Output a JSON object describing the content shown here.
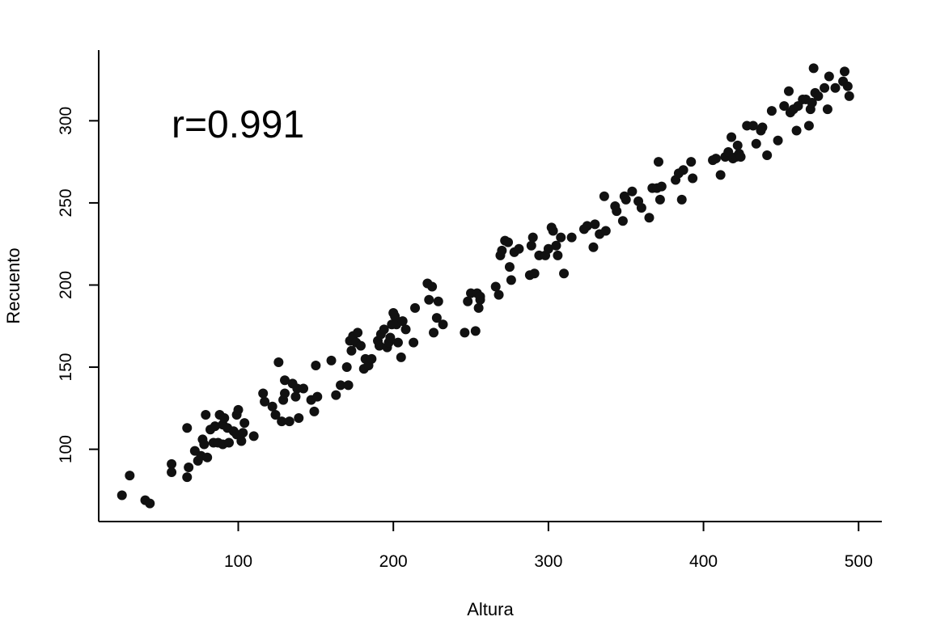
{
  "chart_data": {
    "type": "scatter",
    "title": "",
    "xlabel": "Altura",
    "ylabel": "Recuento",
    "xlim": [
      10,
      515
    ],
    "ylim": [
      56,
      343
    ],
    "x_ticks": [
      100,
      200,
      300,
      400,
      500
    ],
    "y_ticks": [
      100,
      150,
      200,
      250,
      300
    ],
    "annotation": "r=0.991",
    "grid": false,
    "points": [
      [
        25,
        72
      ],
      [
        30,
        84
      ],
      [
        40,
        69
      ],
      [
        43,
        67
      ],
      [
        57,
        91
      ],
      [
        57,
        86
      ],
      [
        67,
        83
      ],
      [
        68,
        89
      ],
      [
        67,
        113
      ],
      [
        72,
        99
      ],
      [
        74,
        93
      ],
      [
        76,
        96
      ],
      [
        77,
        106
      ],
      [
        78,
        103
      ],
      [
        79,
        121
      ],
      [
        80,
        95
      ],
      [
        82,
        112
      ],
      [
        84,
        104
      ],
      [
        85,
        114
      ],
      [
        87,
        104
      ],
      [
        88,
        121
      ],
      [
        90,
        103
      ],
      [
        90,
        115
      ],
      [
        91,
        119
      ],
      [
        93,
        113
      ],
      [
        94,
        104
      ],
      [
        97,
        111
      ],
      [
        99,
        109
      ],
      [
        99,
        121
      ],
      [
        100,
        124
      ],
      [
        102,
        105
      ],
      [
        103,
        110
      ],
      [
        104,
        116
      ],
      [
        110,
        108
      ],
      [
        116,
        134
      ],
      [
        117,
        129
      ],
      [
        122,
        126
      ],
      [
        124,
        121
      ],
      [
        126,
        153
      ],
      [
        128,
        117
      ],
      [
        129,
        130
      ],
      [
        130,
        142
      ],
      [
        130,
        134
      ],
      [
        133,
        117
      ],
      [
        135,
        140
      ],
      [
        137,
        132
      ],
      [
        138,
        137
      ],
      [
        139,
        119
      ],
      [
        142,
        137
      ],
      [
        147,
        130
      ],
      [
        149,
        123
      ],
      [
        150,
        151
      ],
      [
        151,
        132
      ],
      [
        160,
        154
      ],
      [
        163,
        133
      ],
      [
        166,
        139
      ],
      [
        170,
        150
      ],
      [
        171,
        139
      ],
      [
        172,
        166
      ],
      [
        173,
        160
      ],
      [
        174,
        169
      ],
      [
        176,
        165
      ],
      [
        177,
        171
      ],
      [
        179,
        163
      ],
      [
        181,
        149
      ],
      [
        182,
        155
      ],
      [
        184,
        151
      ],
      [
        186,
        155
      ],
      [
        190,
        166
      ],
      [
        191,
        163
      ],
      [
        192,
        170
      ],
      [
        194,
        173
      ],
      [
        196,
        162
      ],
      [
        197,
        165
      ],
      [
        198,
        168
      ],
      [
        199,
        176
      ],
      [
        200,
        183
      ],
      [
        201,
        181
      ],
      [
        202,
        176
      ],
      [
        203,
        165
      ],
      [
        205,
        156
      ],
      [
        206,
        178
      ],
      [
        208,
        173
      ],
      [
        213,
        165
      ],
      [
        214,
        186
      ],
      [
        222,
        201
      ],
      [
        223,
        191
      ],
      [
        225,
        199
      ],
      [
        226,
        171
      ],
      [
        228,
        180
      ],
      [
        229,
        190
      ],
      [
        232,
        176
      ],
      [
        246,
        171
      ],
      [
        248,
        190
      ],
      [
        250,
        195
      ],
      [
        253,
        172
      ],
      [
        254,
        195
      ],
      [
        255,
        186
      ],
      [
        256,
        191
      ],
      [
        256,
        193
      ],
      [
        266,
        199
      ],
      [
        268,
        194
      ],
      [
        269,
        218
      ],
      [
        270,
        221
      ],
      [
        272,
        227
      ],
      [
        274,
        226
      ],
      [
        275,
        211
      ],
      [
        276,
        203
      ],
      [
        278,
        220
      ],
      [
        281,
        222
      ],
      [
        288,
        206
      ],
      [
        289,
        224
      ],
      [
        290,
        229
      ],
      [
        291,
        207
      ],
      [
        294,
        218
      ],
      [
        298,
        218
      ],
      [
        300,
        222
      ],
      [
        302,
        235
      ],
      [
        303,
        233
      ],
      [
        305,
        224
      ],
      [
        306,
        218
      ],
      [
        308,
        229
      ],
      [
        310,
        207
      ],
      [
        315,
        229
      ],
      [
        323,
        234
      ],
      [
        325,
        236
      ],
      [
        329,
        223
      ],
      [
        330,
        237
      ],
      [
        333,
        231
      ],
      [
        336,
        254
      ],
      [
        337,
        233
      ],
      [
        343,
        248
      ],
      [
        344,
        245
      ],
      [
        348,
        239
      ],
      [
        349,
        254
      ],
      [
        350,
        252
      ],
      [
        354,
        257
      ],
      [
        358,
        251
      ],
      [
        360,
        247
      ],
      [
        365,
        241
      ],
      [
        367,
        259
      ],
      [
        370,
        259
      ],
      [
        371,
        275
      ],
      [
        372,
        252
      ],
      [
        373,
        260
      ],
      [
        382,
        264
      ],
      [
        384,
        268
      ],
      [
        386,
        252
      ],
      [
        387,
        270
      ],
      [
        392,
        275
      ],
      [
        393,
        265
      ],
      [
        406,
        276
      ],
      [
        408,
        277
      ],
      [
        411,
        267
      ],
      [
        414,
        278
      ],
      [
        416,
        281
      ],
      [
        418,
        290
      ],
      [
        419,
        277
      ],
      [
        421,
        278
      ],
      [
        422,
        285
      ],
      [
        423,
        280
      ],
      [
        424,
        278
      ],
      [
        428,
        297
      ],
      [
        432,
        297
      ],
      [
        434,
        286
      ],
      [
        437,
        294
      ],
      [
        438,
        296
      ],
      [
        441,
        279
      ],
      [
        444,
        306
      ],
      [
        448,
        288
      ],
      [
        452,
        309
      ],
      [
        455,
        318
      ],
      [
        456,
        305
      ],
      [
        458,
        307
      ],
      [
        460,
        294
      ],
      [
        461,
        309
      ],
      [
        464,
        313
      ],
      [
        466,
        313
      ],
      [
        468,
        297
      ],
      [
        469,
        307
      ],
      [
        470,
        311
      ],
      [
        471,
        332
      ],
      [
        472,
        317
      ],
      [
        474,
        315
      ],
      [
        478,
        320
      ],
      [
        480,
        307
      ],
      [
        481,
        327
      ],
      [
        485,
        320
      ],
      [
        490,
        324
      ],
      [
        491,
        330
      ],
      [
        493,
        321
      ],
      [
        494,
        315
      ]
    ]
  }
}
